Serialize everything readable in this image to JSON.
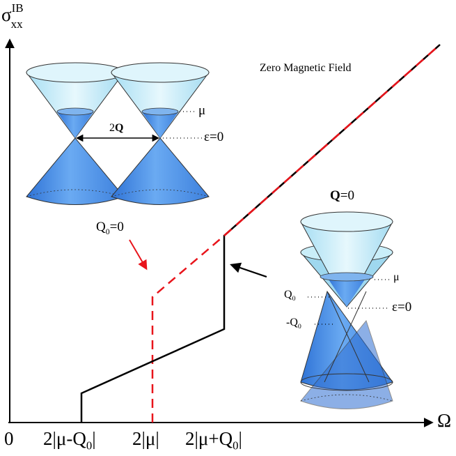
{
  "y_axis_label": {
    "base": "σ",
    "sup": "IB",
    "sub": "xx"
  },
  "x_axis_label": "Ω",
  "x_ticks": {
    "origin": "0",
    "t1": {
      "pre": "2|μ-Q",
      "sub": "0",
      "post": "|"
    },
    "t2": "2|μ|",
    "t3": {
      "pre": "2|μ+Q",
      "sub": "0",
      "post": "|"
    }
  },
  "annotation_field": "Zero Magnetic Field",
  "left_inset": {
    "separation": {
      "pre": "2",
      "bold": "Q"
    },
    "mu": "μ",
    "eps": "ε=0",
    "caption": {
      "pre": "Q",
      "sub": "0",
      "post": "=0"
    }
  },
  "right_inset": {
    "title": {
      "bold": "Q",
      "post": "=0"
    },
    "mu": "μ",
    "q0": {
      "pre": "Q",
      "sub": "0"
    },
    "mq0": {
      "pre": "-Q",
      "sub": "0"
    },
    "eps": "ε=0"
  },
  "colors": {
    "solid_curve": "#000000",
    "dashed_curve": "#e8141b",
    "cone_fill": "#4a8fe8",
    "cone_light": "#bfeaf6"
  }
}
